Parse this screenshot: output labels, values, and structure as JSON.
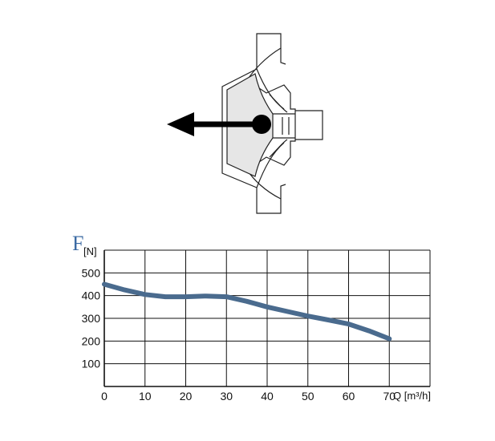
{
  "chart_data": {
    "type": "line",
    "ylabel_symbol": "F",
    "ylabel_unit": "[N]",
    "xlabel": "Q [m³/h]",
    "xlim": [
      0,
      80
    ],
    "ylim": [
      0,
      600
    ],
    "x_ticks": [
      0,
      10,
      20,
      30,
      40,
      50,
      60,
      70
    ],
    "y_ticks": [
      100,
      200,
      300,
      400,
      500
    ],
    "grid": true,
    "series": [
      {
        "color": "#4a6b8e",
        "x": [
          0,
          5,
          10,
          15,
          20,
          25,
          30,
          35,
          40,
          45,
          50,
          55,
          60,
          65,
          70
        ],
        "values": [
          450,
          425,
          405,
          395,
          395,
          398,
          395,
          375,
          350,
          330,
          310,
          293,
          275,
          245,
          210
        ]
      }
    ]
  },
  "diagram": {
    "arrow_color": "#000000",
    "impeller_fill": "#e6e6e6",
    "line_color": "#222222"
  }
}
